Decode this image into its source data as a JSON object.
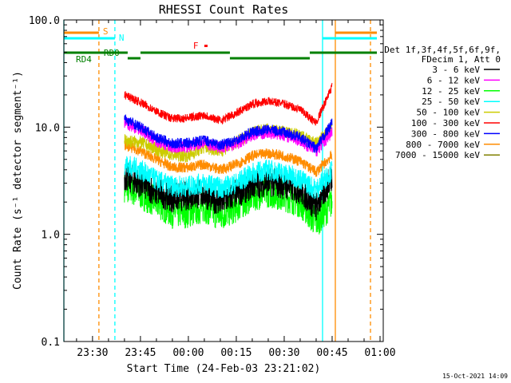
{
  "chart_data": {
    "type": "line",
    "title": "RHESSI Count Rates",
    "xlabel": "Start Time (24-Feb-03 23:21:02)",
    "ylabel": "Count Rate (s⁻¹ detector segment⁻¹)",
    "yscale": "log",
    "ylim": [
      0.1,
      100.0
    ],
    "xlim": [
      "23:21:02",
      "01:01:00"
    ],
    "x_tick_labels": [
      "23:30",
      "23:45",
      "00:00",
      "00:15",
      "00:30",
      "00:45",
      "01:00"
    ],
    "y_tick_labels": [
      "0.1",
      "1.0",
      "10.0",
      "100.0"
    ],
    "grid": false,
    "legend_position": "right",
    "legend_header": [
      "Det 1f,3f,4f,5f,6f,9f,",
      "FDecim 1, Att 0"
    ],
    "series": [
      {
        "name": "3 - 6 keV",
        "color": "#000000",
        "x": [
          "23:40",
          "23:45",
          "23:50",
          "23:55",
          "00:00",
          "00:05",
          "00:10",
          "00:15",
          "00:20",
          "00:25",
          "00:30",
          "00:35",
          "00:40",
          "00:45"
        ],
        "values": [
          3.5,
          3.0,
          2.5,
          2.2,
          2.3,
          2.4,
          2.0,
          2.4,
          2.9,
          3.1,
          2.9,
          2.6,
          1.8,
          3.5
        ]
      },
      {
        "name": "6 - 12 keV",
        "color": "#ff00ff",
        "x": [
          "23:40",
          "23:45",
          "23:50",
          "23:55",
          "00:00",
          "00:05",
          "00:10",
          "00:15",
          "00:20",
          "00:25",
          "00:30",
          "00:35",
          "00:40",
          "00:45"
        ],
        "values": [
          11.0,
          9.5,
          7.5,
          6.5,
          6.6,
          7.2,
          6.4,
          7.0,
          8.5,
          9.0,
          8.5,
          7.5,
          6.0,
          9.0
        ]
      },
      {
        "name": "12 - 25 keV",
        "color": "#00ff00",
        "x": [
          "23:40",
          "23:45",
          "23:50",
          "23:55",
          "00:00",
          "00:05",
          "00:10",
          "00:15",
          "00:20",
          "00:25",
          "00:30",
          "00:35",
          "00:40",
          "00:45"
        ],
        "values": [
          2.8,
          2.4,
          2.0,
          1.6,
          1.6,
          1.8,
          1.5,
          1.8,
          2.3,
          2.5,
          2.3,
          2.0,
          1.3,
          2.0
        ]
      },
      {
        "name": "25 - 50 keV",
        "color": "#00ffff",
        "x": [
          "23:40",
          "23:45",
          "23:50",
          "23:55",
          "00:00",
          "00:05",
          "00:10",
          "00:15",
          "00:20",
          "00:25",
          "00:30",
          "00:35",
          "00:40",
          "00:45"
        ],
        "values": [
          4.5,
          4.0,
          3.2,
          2.8,
          2.8,
          3.0,
          2.7,
          3.0,
          3.7,
          4.0,
          3.7,
          3.3,
          2.6,
          4.0
        ]
      },
      {
        "name": "50 - 100 keV",
        "color": "#cccc00",
        "x": [
          "23:40",
          "23:45",
          "23:50",
          "23:55",
          "00:00",
          "00:05",
          "00:10",
          "00:15",
          "00:20",
          "00:25",
          "00:30",
          "00:35",
          "00:40",
          "00:45"
        ],
        "values": [
          7.5,
          7.2,
          6.2,
          5.5,
          5.4,
          6.5,
          6.0,
          7.2,
          9.0,
          9.5,
          9.0,
          8.3,
          7.0,
          10.0
        ]
      },
      {
        "name": "100 - 300 keV",
        "color": "#ff0000",
        "x": [
          "23:40",
          "23:45",
          "23:50",
          "23:55",
          "00:00",
          "00:05",
          "00:10",
          "00:15",
          "00:20",
          "00:25",
          "00:30",
          "00:35",
          "00:40",
          "00:45"
        ],
        "values": [
          20.0,
          17.0,
          14.0,
          12.0,
          12.2,
          13.0,
          11.5,
          13.5,
          16.5,
          17.5,
          16.5,
          14.5,
          11.0,
          24.0
        ]
      },
      {
        "name": "300 - 800 keV",
        "color": "#0000ff",
        "x": [
          "23:40",
          "23:45",
          "23:50",
          "23:55",
          "00:00",
          "00:05",
          "00:10",
          "00:15",
          "00:20",
          "00:25",
          "00:30",
          "00:35",
          "00:40",
          "00:45"
        ],
        "values": [
          12.0,
          10.0,
          8.0,
          7.0,
          7.1,
          7.6,
          6.8,
          7.6,
          9.0,
          9.5,
          9.0,
          8.0,
          6.3,
          11.0
        ]
      },
      {
        "name": "800 - 7000 keV",
        "color": "#ff8c00",
        "x": [
          "23:40",
          "23:45",
          "23:50",
          "23:55",
          "00:00",
          "00:05",
          "00:10",
          "00:15",
          "00:20",
          "00:25",
          "00:30",
          "00:35",
          "00:40",
          "00:45"
        ],
        "values": [
          6.8,
          6.0,
          5.0,
          4.2,
          4.2,
          4.5,
          4.0,
          4.5,
          5.4,
          5.7,
          5.4,
          4.8,
          3.8,
          5.5
        ]
      },
      {
        "name": "7000 - 15000 keV",
        "color": "#808000",
        "x": [],
        "values": []
      }
    ],
    "annotations": [
      {
        "text": "S",
        "color": "#ff8c00"
      },
      {
        "text": "N",
        "color": "#00ffff"
      },
      {
        "text": "F",
        "color": "#ff0000"
      },
      {
        "text": "RD0",
        "color": "#008000"
      },
      {
        "text": "RD4",
        "color": "#008000"
      }
    ],
    "vertical_markers": [
      {
        "time": "23:21:02",
        "color": "#00ffff",
        "style": "solid"
      },
      {
        "time": "23:32",
        "color": "#ff8c00",
        "style": "dashed"
      },
      {
        "time": "23:37",
        "color": "#00ffff",
        "style": "dashed"
      },
      {
        "time": "00:42",
        "color": "#00ffff",
        "style": "solid"
      },
      {
        "time": "00:46",
        "color": "#ff8c00",
        "style": "solid"
      },
      {
        "time": "00:57",
        "color": "#ff8c00",
        "style": "dashed"
      }
    ]
  },
  "footer_date": "15-Oct-2021 14:09"
}
